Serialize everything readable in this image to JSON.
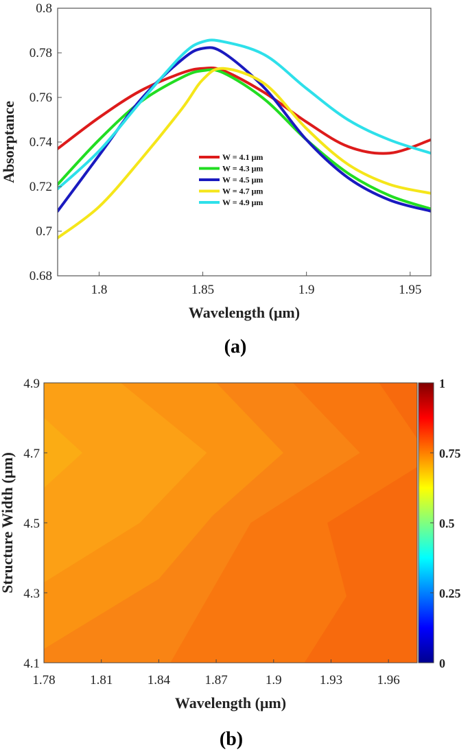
{
  "chart_data": [
    {
      "type": "line",
      "panel_label": "(a)",
      "xlabel": "Wavelength (μm)",
      "ylabel": "Absorptance",
      "xlim": [
        1.78,
        1.96
      ],
      "ylim": [
        0.68,
        0.8
      ],
      "xticks": [
        "1.8",
        "1.85",
        "1.9",
        "1.95"
      ],
      "yticks": [
        "0.68",
        "0.7",
        "0.72",
        "0.74",
        "0.76",
        "0.78",
        "0.8"
      ],
      "xtick_values": [
        1.8,
        1.85,
        1.9,
        1.95
      ],
      "ytick_values": [
        0.68,
        0.7,
        0.72,
        0.74,
        0.76,
        0.78,
        0.8
      ],
      "legend_position": "center",
      "x": [
        1.78,
        1.8,
        1.82,
        1.84,
        1.85,
        1.86,
        1.88,
        1.9,
        1.92,
        1.94,
        1.96
      ],
      "series": [
        {
          "name": "W = 4.1 μm",
          "color": "#dd1b1b",
          "values": [
            0.737,
            0.751,
            0.763,
            0.771,
            0.773,
            0.772,
            0.762,
            0.749,
            0.738,
            0.735,
            0.741
          ]
        },
        {
          "name": "W = 4.3 μm",
          "color": "#22dd22",
          "values": [
            0.721,
            0.741,
            0.758,
            0.769,
            0.772,
            0.771,
            0.759,
            0.741,
            0.726,
            0.716,
            0.71
          ]
        },
        {
          "name": "W = 4.5 μm",
          "color": "#1a1abf",
          "values": [
            0.709,
            0.734,
            0.759,
            0.777,
            0.782,
            0.78,
            0.764,
            0.741,
            0.724,
            0.714,
            0.709
          ]
        },
        {
          "name": "W = 4.7 μm",
          "color": "#f5e61a",
          "values": [
            0.697,
            0.711,
            0.732,
            0.755,
            0.768,
            0.773,
            0.766,
            0.746,
            0.73,
            0.721,
            0.717
          ]
        },
        {
          "name": "W = 4.9 μm",
          "color": "#2ee0ea",
          "values": [
            0.719,
            0.736,
            0.758,
            0.779,
            0.785,
            0.785,
            0.779,
            0.764,
            0.75,
            0.741,
            0.735
          ]
        }
      ]
    },
    {
      "type": "heatmap",
      "panel_label": "(b)",
      "xlabel": "Wavelength (μm)",
      "ylabel": "Structure Width (μm)",
      "xlim": [
        1.78,
        1.975
      ],
      "ylim": [
        4.1,
        4.9
      ],
      "xticks": [
        "1.78",
        "1.81",
        "1.84",
        "1.87",
        "1.9",
        "1.93",
        "1.96"
      ],
      "yticks": [
        "4.1",
        "4.3",
        "4.5",
        "4.7",
        "4.9"
      ],
      "xtick_values": [
        1.78,
        1.81,
        1.84,
        1.87,
        1.9,
        1.93,
        1.96
      ],
      "ytick_values": [
        4.1,
        4.3,
        4.5,
        4.7,
        4.9
      ],
      "colorbar": {
        "range": [
          0,
          1
        ],
        "ticks": [
          "0",
          "0.25",
          "0.5",
          "0.75",
          "1"
        ],
        "tick_values": [
          0,
          0.25,
          0.5,
          0.75,
          1
        ]
      },
      "colormap": "jet",
      "contour_levels": [
        {
          "level": 0.76,
          "color": "#fbac14",
          "points": [
            [
              1.78,
              4.6
            ],
            [
              1.8,
              4.7
            ],
            [
              1.78,
              4.8
            ]
          ]
        },
        {
          "level": 0.75,
          "color": "#fca015",
          "points": [
            [
              1.78,
              4.33
            ],
            [
              1.83,
              4.5
            ],
            [
              1.865,
              4.7
            ],
            [
              1.82,
              4.9
            ],
            [
              1.78,
              4.9
            ]
          ]
        },
        {
          "level": 0.745,
          "color": "#fb9312",
          "points": [
            [
              1.78,
              4.14
            ],
            [
              1.84,
              4.34
            ],
            [
              1.868,
              4.52
            ],
            [
              1.905,
              4.7
            ],
            [
              1.87,
              4.9
            ],
            [
              1.78,
              4.9
            ]
          ]
        },
        {
          "level": 0.74,
          "color": "#f98414",
          "points": [
            [
              1.78,
              4.1
            ],
            [
              1.846,
              4.1
            ],
            [
              1.888,
              4.5
            ],
            [
              1.945,
              4.7
            ],
            [
              1.91,
              4.9
            ],
            [
              1.78,
              4.9
            ]
          ]
        },
        {
          "level": 0.735,
          "color": "#f9770f",
          "points": [
            [
              1.78,
              4.1
            ],
            [
              1.916,
              4.1
            ],
            [
              1.938,
              4.29
            ],
            [
              1.928,
              4.5
            ],
            [
              1.975,
              4.66
            ],
            [
              1.975,
              4.74
            ],
            [
              1.955,
              4.9
            ],
            [
              1.78,
              4.9
            ]
          ]
        }
      ],
      "base_color": "#f76a0d"
    }
  ]
}
